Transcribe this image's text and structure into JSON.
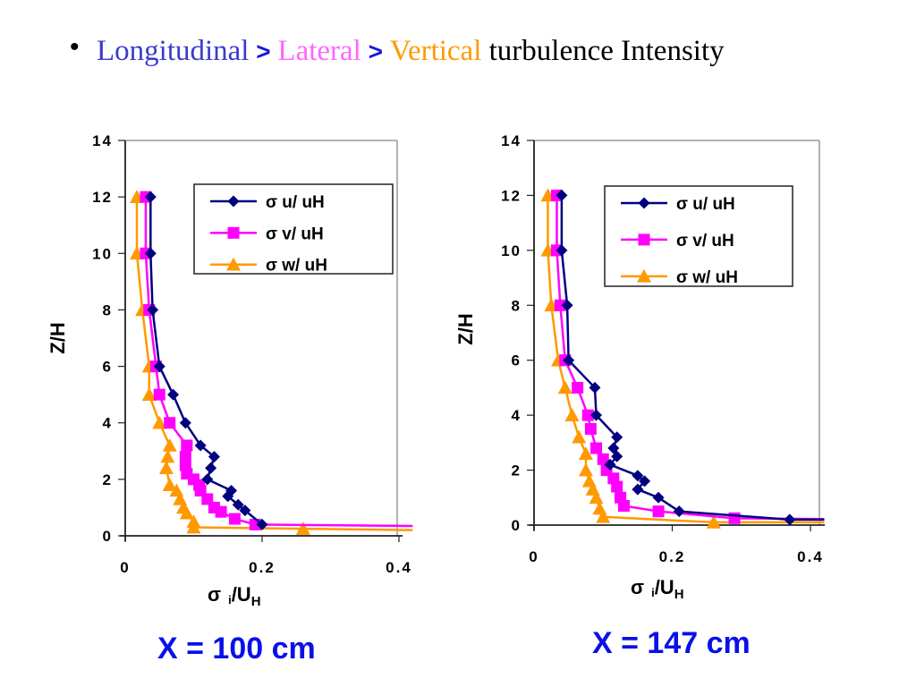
{
  "slide": {
    "bullet": "•",
    "heading_parts": [
      {
        "text": "Longitudinal",
        "color": "#3a3ad0"
      },
      {
        "text": " > ",
        "color": "#1a1ad8"
      },
      {
        "text": "Lateral",
        "color": "#ff66ff"
      },
      {
        "text": " > ",
        "color": "#1a1ad8"
      },
      {
        "text": "Vertical",
        "color": "#ff9900"
      },
      {
        "text": " turbulence Intensity",
        "color": "#000000"
      }
    ]
  },
  "series_style": {
    "u": {
      "color": "#000080",
      "marker": "diamond"
    },
    "v": {
      "color": "#ff00ff",
      "marker": "square"
    },
    "w": {
      "color": "#ff9900",
      "marker": "triangle"
    }
  },
  "chart_data": [
    {
      "type": "line",
      "title": "",
      "caption": "X = 100 cm",
      "xlabel": "σ i/UH",
      "xlabel_main": "σ",
      "xlabel_sub_i": "i",
      "xlabel_slash_U": "/U",
      "xlabel_sub_H": "H",
      "ylabel": "Z/H",
      "xlim": [
        0,
        0.4
      ],
      "ylim": [
        0,
        14
      ],
      "xticks": [
        "0",
        "0.2",
        "0.4"
      ],
      "xtick_values": [
        0,
        0.2,
        0.4
      ],
      "yticks": [
        "0",
        "2",
        "4",
        "6",
        "8",
        "10",
        "12",
        "14"
      ],
      "ytick_values": [
        0,
        2,
        4,
        6,
        8,
        10,
        12,
        14
      ],
      "grid": false,
      "legend_position": "top-right",
      "series": [
        {
          "key": "u",
          "name": "σ u/ uH",
          "x": [
            0.037,
            0.037,
            0.04,
            0.05,
            0.07,
            0.088,
            0.11,
            0.13,
            0.125,
            0.12,
            0.155,
            0.15,
            0.165,
            0.175,
            0.2
          ],
          "y": [
            12,
            10,
            8,
            6,
            5,
            4,
            3.2,
            2.8,
            2.4,
            2.0,
            1.6,
            1.4,
            1.1,
            0.9,
            0.4
          ]
        },
        {
          "key": "v",
          "name": "σ v/ uH",
          "x": [
            0.03,
            0.03,
            0.035,
            0.045,
            0.05,
            0.065,
            0.09,
            0.088,
            0.088,
            0.09,
            0.1,
            0.108,
            0.11,
            0.12,
            0.13,
            0.14,
            0.16,
            0.19,
            0.42
          ],
          "y": [
            12,
            10,
            8,
            6,
            5,
            4,
            3.2,
            2.8,
            2.5,
            2.2,
            2.0,
            1.8,
            1.6,
            1.3,
            1.0,
            0.85,
            0.6,
            0.4,
            0.35
          ]
        },
        {
          "key": "w",
          "name": "σ w/ uH",
          "x": [
            0.017,
            0.017,
            0.025,
            0.035,
            0.035,
            0.05,
            0.065,
            0.062,
            0.06,
            0.065,
            0.075,
            0.08,
            0.085,
            0.09,
            0.1,
            0.1,
            0.26,
            0.42
          ],
          "y": [
            12,
            10,
            8,
            6,
            5,
            4,
            3.2,
            2.8,
            2.4,
            1.8,
            1.6,
            1.3,
            1.0,
            0.8,
            0.5,
            0.3,
            0.25,
            0.2
          ]
        }
      ]
    },
    {
      "type": "line",
      "title": "",
      "caption": "X = 147 cm",
      "xlabel": "σ i/UH",
      "xlabel_main": "σ",
      "xlabel_sub_i": "i",
      "xlabel_slash_U": "/U",
      "xlabel_sub_H": "H",
      "ylabel": "Z/H",
      "xlim": [
        0,
        0.4
      ],
      "ylim": [
        0,
        14
      ],
      "xticks": [
        "0",
        "0.2",
        "0.4"
      ],
      "xtick_values": [
        0,
        0.2,
        0.4
      ],
      "yticks": [
        "0",
        "2",
        "4",
        "6",
        "8",
        "10",
        "12",
        "14"
      ],
      "ytick_values": [
        0,
        2,
        4,
        6,
        8,
        10,
        12,
        14
      ],
      "grid": false,
      "legend_position": "top-right",
      "series": [
        {
          "key": "u",
          "name": "σ u/ uH",
          "x": [
            0.04,
            0.04,
            0.048,
            0.05,
            0.088,
            0.09,
            0.12,
            0.115,
            0.12,
            0.11,
            0.15,
            0.16,
            0.15,
            0.18,
            0.21,
            0.37,
            0.42
          ],
          "y": [
            12,
            10,
            8,
            6,
            5,
            4,
            3.2,
            2.8,
            2.5,
            2.2,
            1.8,
            1.6,
            1.3,
            1.0,
            0.5,
            0.2,
            0.2
          ]
        },
        {
          "key": "v",
          "name": "σ v/ uH",
          "x": [
            0.033,
            0.033,
            0.038,
            0.045,
            0.063,
            0.078,
            0.082,
            0.09,
            0.1,
            0.105,
            0.115,
            0.12,
            0.125,
            0.13,
            0.18,
            0.29,
            0.42
          ],
          "y": [
            12,
            10,
            8,
            6,
            5,
            4,
            3.5,
            2.8,
            2.4,
            2.0,
            1.7,
            1.4,
            1.0,
            0.7,
            0.5,
            0.25,
            0.22
          ]
        },
        {
          "key": "w",
          "name": "σ w/ uH",
          "x": [
            0.02,
            0.02,
            0.025,
            0.035,
            0.045,
            0.055,
            0.065,
            0.075,
            0.075,
            0.08,
            0.085,
            0.09,
            0.095,
            0.1,
            0.26,
            0.42
          ],
          "y": [
            12,
            10,
            8,
            6,
            5,
            4,
            3.2,
            2.6,
            2.0,
            1.6,
            1.3,
            1.0,
            0.6,
            0.3,
            0.1,
            0.1
          ]
        }
      ]
    }
  ]
}
